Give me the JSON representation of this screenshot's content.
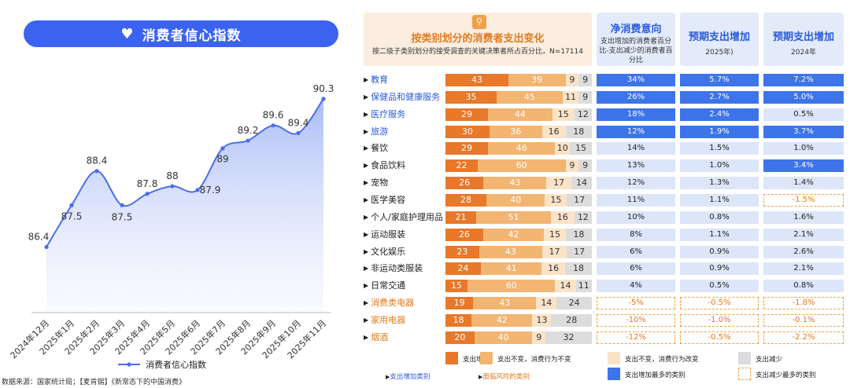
{
  "left_title": "消费者信心指数",
  "source": "数据来源：国家统计局；【麦肯锡】《新常态下的中国消费》",
  "colors": {
    "accent_blue": "#3b63f0",
    "line": "#4a6fe8",
    "increase": "#e8782a",
    "unchanged": "#f2b572",
    "changed_behavior": "#fbe3c8",
    "decrease": "#dcdcdc",
    "highlight_blue": "#3d74ea",
    "pale_blue": "#dde6f8"
  },
  "chart_data": [
    {
      "type": "line",
      "title": "消费者信心指数",
      "categories": [
        "2024年12月",
        "2025年1月",
        "2025年2月",
        "2025年3月",
        "2025年4月",
        "2025年5月",
        "2025年6月",
        "2025年7月",
        "2025年8月",
        "2025年9月",
        "2025年10月",
        "2025年11月"
      ],
      "series": [
        {
          "name": "消费者信心指数",
          "values": [
            86.4,
            87.5,
            88.4,
            87.5,
            87.8,
            88.0,
            87.9,
            89.0,
            89.2,
            89.6,
            89.4,
            90.3
          ]
        }
      ],
      "value_labels": [
        "86.4",
        "87.5",
        "88.4",
        "87.5",
        "87.8",
        "88",
        "87.9",
        "89",
        "89.2",
        "89.6",
        "89.4",
        "90.3"
      ],
      "ylim": [
        85.5,
        91
      ],
      "area_fill": true,
      "legend_position": "bottom"
    },
    {
      "type": "table",
      "title": "按类别划分的消费者支出变化",
      "subtitle": "按二级子类别划分的接受调查的关键决策者所占百分比，N=17114",
      "columns": {
        "net": {
          "title": "净消费意向",
          "subtitle": "支出增加的消费者百分比-支出减少的消费者百分比"
        },
        "y2025": {
          "title": "预期支出增加",
          "subtitle": "2025年)"
        },
        "y2024": {
          "title": "预期支出增加",
          "subtitle": "2024年"
        }
      },
      "rows": [
        {
          "name": "教育",
          "group": "increase",
          "bars": [
            43,
            39,
            9,
            9
          ],
          "net": "34%",
          "y2025": "5.7%",
          "y2024": "7.2%",
          "net_style": "hi",
          "y2025_style": "hi",
          "y2024_style": "hi"
        },
        {
          "name": "保健品和健康服务",
          "group": "increase",
          "bars": [
            35,
            45,
            11,
            9
          ],
          "net": "26%",
          "y2025": "2.7%",
          "y2024": "5.0%",
          "net_style": "hi",
          "y2025_style": "hi",
          "y2024_style": "hi"
        },
        {
          "name": "医疗服务",
          "group": "increase",
          "bars": [
            29,
            44,
            15,
            12
          ],
          "net": "18%",
          "y2025": "2.4%",
          "y2024": "0.5%",
          "net_style": "hi",
          "y2025_style": "hi",
          "y2024_style": "norm"
        },
        {
          "name": "旅游",
          "group": "increase",
          "bars": [
            30,
            36,
            16,
            18
          ],
          "net": "12%",
          "y2025": "1.9%",
          "y2024": "3.7%",
          "net_style": "hi",
          "y2025_style": "hi",
          "y2024_style": "hi"
        },
        {
          "name": "餐饮",
          "group": "normal",
          "bars": [
            29,
            46,
            10,
            15
          ],
          "net": "14%",
          "y2025": "1.5%",
          "y2024": "1.0%",
          "net_style": "norm",
          "y2025_style": "norm",
          "y2024_style": "norm"
        },
        {
          "name": "食品饮料",
          "group": "normal",
          "bars": [
            22,
            60,
            9,
            9
          ],
          "net": "13%",
          "y2025": "1.0%",
          "y2024": "3.4%",
          "net_style": "norm",
          "y2025_style": "norm",
          "y2024_style": "hi"
        },
        {
          "name": "宠物",
          "group": "normal",
          "bars": [
            26,
            43,
            17,
            14
          ],
          "net": "12%",
          "y2025": "1.3%",
          "y2024": "1.4%",
          "net_style": "norm",
          "y2025_style": "norm",
          "y2024_style": "norm"
        },
        {
          "name": "医学美容",
          "group": "normal",
          "bars": [
            28,
            40,
            15,
            17
          ],
          "net": "11%",
          "y2025": "1.1%",
          "y2024": "-1.5%",
          "net_style": "norm",
          "y2025_style": "norm",
          "y2024_style": "lo"
        },
        {
          "name": "个人/家庭护理用品",
          "group": "normal",
          "bars": [
            21,
            51,
            16,
            12
          ],
          "net": "10%",
          "y2025": "0.8%",
          "y2024": "1.6%",
          "net_style": "norm",
          "y2025_style": "norm",
          "y2024_style": "norm"
        },
        {
          "name": "运动服装",
          "group": "normal",
          "bars": [
            26,
            42,
            15,
            18
          ],
          "net": "8%",
          "y2025": "1.1%",
          "y2024": "2.1%",
          "net_style": "norm",
          "y2025_style": "norm",
          "y2024_style": "norm"
        },
        {
          "name": "文化娱乐",
          "group": "normal",
          "bars": [
            23,
            43,
            17,
            17
          ],
          "net": "6%",
          "y2025": "0.9%",
          "y2024": "2.6%",
          "net_style": "norm",
          "y2025_style": "norm",
          "y2024_style": "norm"
        },
        {
          "name": "非运动类服装",
          "group": "normal",
          "bars": [
            24,
            41,
            16,
            18
          ],
          "net": "6%",
          "y2025": "0.9%",
          "y2024": "2.1%",
          "net_style": "norm",
          "y2025_style": "norm",
          "y2024_style": "norm"
        },
        {
          "name": "日常交通",
          "group": "normal",
          "bars": [
            15,
            60,
            14,
            11
          ],
          "net": "4%",
          "y2025": "0.5%",
          "y2024": "0.8%",
          "net_style": "norm",
          "y2025_style": "norm",
          "y2024_style": "norm"
        },
        {
          "name": "消费类电器",
          "group": "risk",
          "bars": [
            19,
            43,
            14,
            24
          ],
          "net": "-5%",
          "y2025": "-0.5%",
          "y2024": "-1.8%",
          "net_style": "lo",
          "y2025_style": "lo",
          "y2024_style": "lo"
        },
        {
          "name": "家用电器",
          "group": "risk",
          "bars": [
            18,
            42,
            13,
            28
          ],
          "net": "-10%",
          "y2025": "-1.0%",
          "y2024": "-0.1%",
          "net_style": "lo",
          "y2025_style": "lo",
          "y2024_style": "lo"
        },
        {
          "name": "烟酒",
          "group": "risk",
          "bars": [
            20,
            40,
            9,
            32
          ],
          "net": "-12%",
          "y2025": "-0.5%",
          "y2024": "-2.2%",
          "net_style": "lo",
          "y2025_style": "lo",
          "y2024_style": "lo"
        }
      ]
    }
  ],
  "legend": {
    "increase": "支出增加",
    "unchanged": "支出不变，消费行为不变",
    "changed_behavior": "支出不变，消费行为改变",
    "decrease": "支出减少",
    "increase_category": "支出增加类别",
    "risk_category": "面临风险的类别",
    "most_increase": "支出增加最多的类别",
    "most_decrease": "支出减少最多的类别"
  }
}
